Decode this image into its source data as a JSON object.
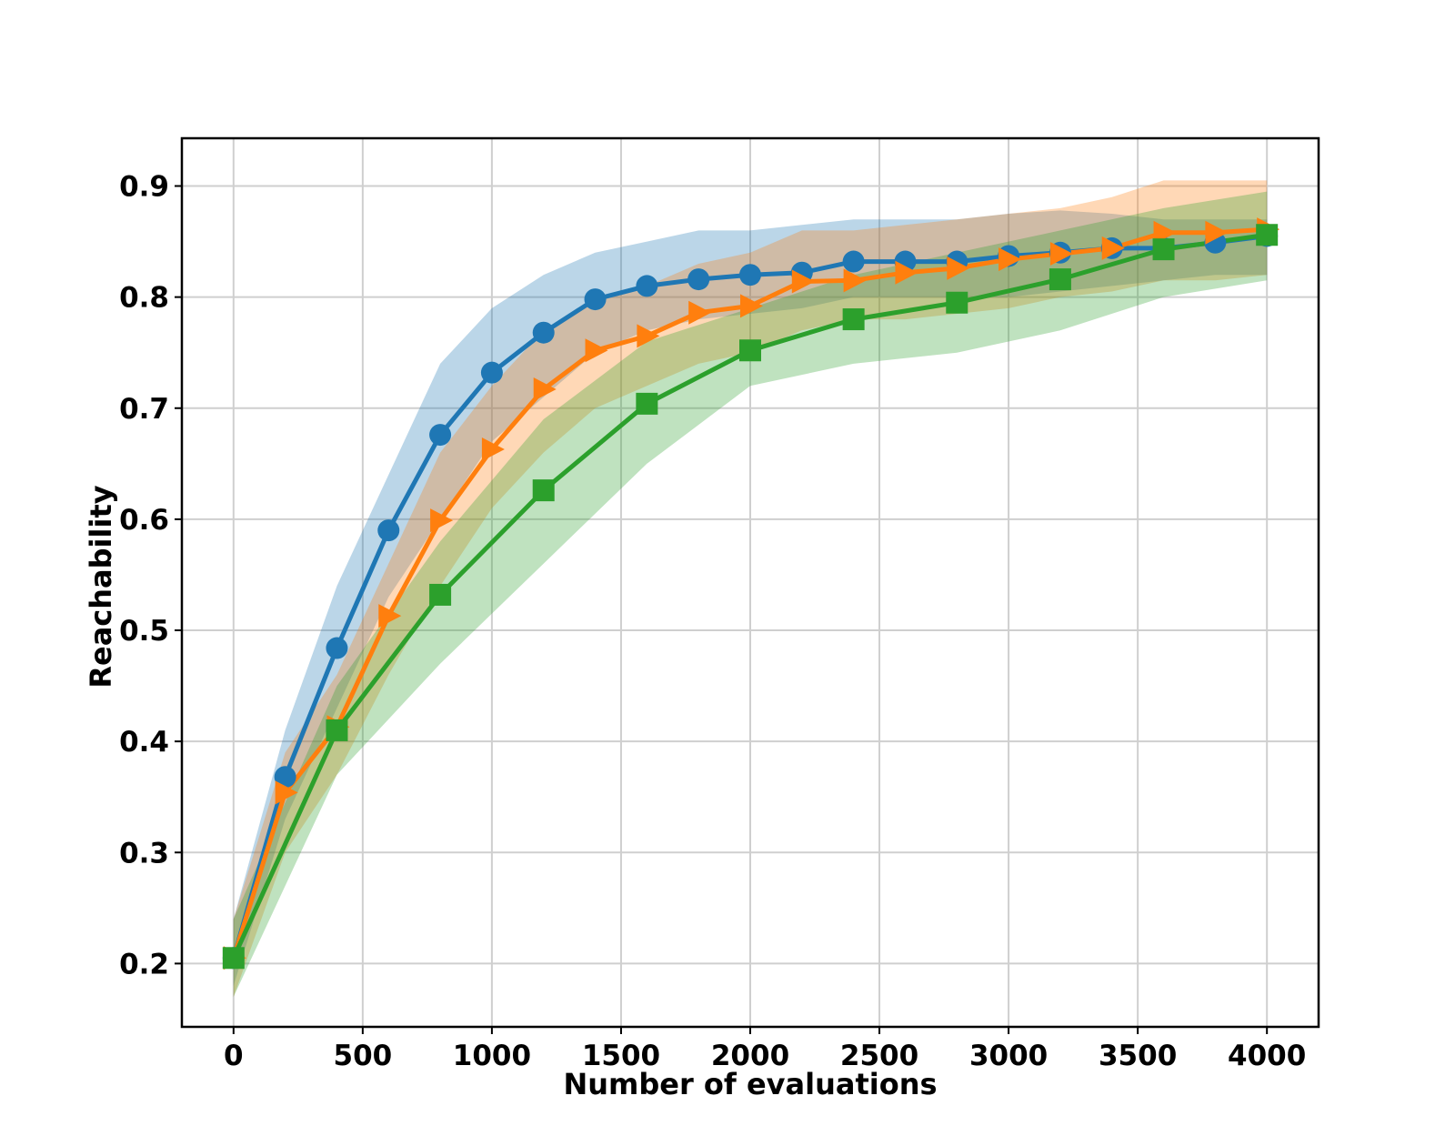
{
  "chart_data": {
    "type": "line",
    "title": "",
    "xlabel": "Number of evaluations",
    "ylabel": "Reachability",
    "xlim": [
      -200,
      4200
    ],
    "ylim": [
      0.143,
      0.943
    ],
    "xticks": [
      0,
      500,
      1000,
      1500,
      2000,
      2500,
      3000,
      3500,
      4000
    ],
    "yticks": [
      0.2,
      0.3,
      0.4,
      0.5,
      0.6,
      0.7,
      0.8,
      0.9
    ],
    "xtick_labels": [
      "0",
      "500",
      "1000",
      "1500",
      "2000",
      "2500",
      "3000",
      "3500",
      "4000"
    ],
    "ytick_labels": [
      "0.2",
      "0.3",
      "0.4",
      "0.5",
      "0.6",
      "0.7",
      "0.8",
      "0.9"
    ],
    "grid": true,
    "legend": "none",
    "series": [
      {
        "color": "#1f77b4",
        "band_color": "#1f77b4",
        "marker": "circle",
        "x": [
          0,
          200,
          400,
          600,
          800,
          1000,
          1200,
          1400,
          1600,
          1800,
          2000,
          2200,
          2400,
          2600,
          2800,
          3000,
          3200,
          3400,
          3600,
          3800,
          4000
        ],
        "y": [
          0.205,
          0.368,
          0.484,
          0.59,
          0.676,
          0.732,
          0.768,
          0.798,
          0.81,
          0.816,
          0.82,
          0.822,
          0.832,
          0.832,
          0.832,
          0.837,
          0.84,
          0.844,
          0.844,
          0.849,
          0.855
        ],
        "upper": [
          0.24,
          0.41,
          0.54,
          0.64,
          0.74,
          0.79,
          0.82,
          0.84,
          0.85,
          0.86,
          0.86,
          0.865,
          0.87,
          0.87,
          0.87,
          0.875,
          0.878,
          0.875,
          0.87,
          0.87,
          0.87
        ],
        "lower": [
          0.18,
          0.33,
          0.43,
          0.53,
          0.6,
          0.67,
          0.71,
          0.75,
          0.77,
          0.78,
          0.785,
          0.79,
          0.8,
          0.8,
          0.8,
          0.8,
          0.805,
          0.81,
          0.815,
          0.82,
          0.82
        ]
      },
      {
        "color": "#ff7f0e",
        "band_color": "#ff7f0e",
        "marker": "triangle-right",
        "x": [
          0,
          200,
          400,
          600,
          800,
          1000,
          1200,
          1400,
          1600,
          1800,
          2000,
          2200,
          2400,
          2600,
          2800,
          3000,
          3200,
          3400,
          3600,
          3800,
          4000
        ],
        "y": [
          0.205,
          0.354,
          0.413,
          0.513,
          0.599,
          0.663,
          0.717,
          0.752,
          0.765,
          0.786,
          0.792,
          0.814,
          0.815,
          0.822,
          0.826,
          0.834,
          0.839,
          0.844,
          0.858,
          0.858,
          0.861
        ],
        "upper": [
          0.24,
          0.39,
          0.46,
          0.56,
          0.66,
          0.72,
          0.77,
          0.8,
          0.81,
          0.83,
          0.84,
          0.86,
          0.86,
          0.865,
          0.87,
          0.875,
          0.88,
          0.89,
          0.905,
          0.905,
          0.905
        ],
        "lower": [
          0.17,
          0.3,
          0.37,
          0.46,
          0.54,
          0.61,
          0.66,
          0.7,
          0.72,
          0.74,
          0.75,
          0.77,
          0.78,
          0.78,
          0.785,
          0.79,
          0.8,
          0.805,
          0.815,
          0.815,
          0.82
        ]
      },
      {
        "color": "#2ca02c",
        "band_color": "#2ca02c",
        "marker": "square",
        "x": [
          0,
          400,
          800,
          1200,
          1600,
          2000,
          2400,
          2800,
          3200,
          3600,
          4000
        ],
        "y": [
          0.205,
          0.41,
          0.532,
          0.626,
          0.704,
          0.752,
          0.78,
          0.795,
          0.816,
          0.843,
          0.856
        ],
        "upper": [
          0.24,
          0.45,
          0.58,
          0.69,
          0.76,
          0.79,
          0.82,
          0.84,
          0.86,
          0.88,
          0.895
        ],
        "lower": [
          0.17,
          0.37,
          0.47,
          0.56,
          0.65,
          0.72,
          0.74,
          0.75,
          0.77,
          0.8,
          0.815
        ]
      }
    ]
  }
}
